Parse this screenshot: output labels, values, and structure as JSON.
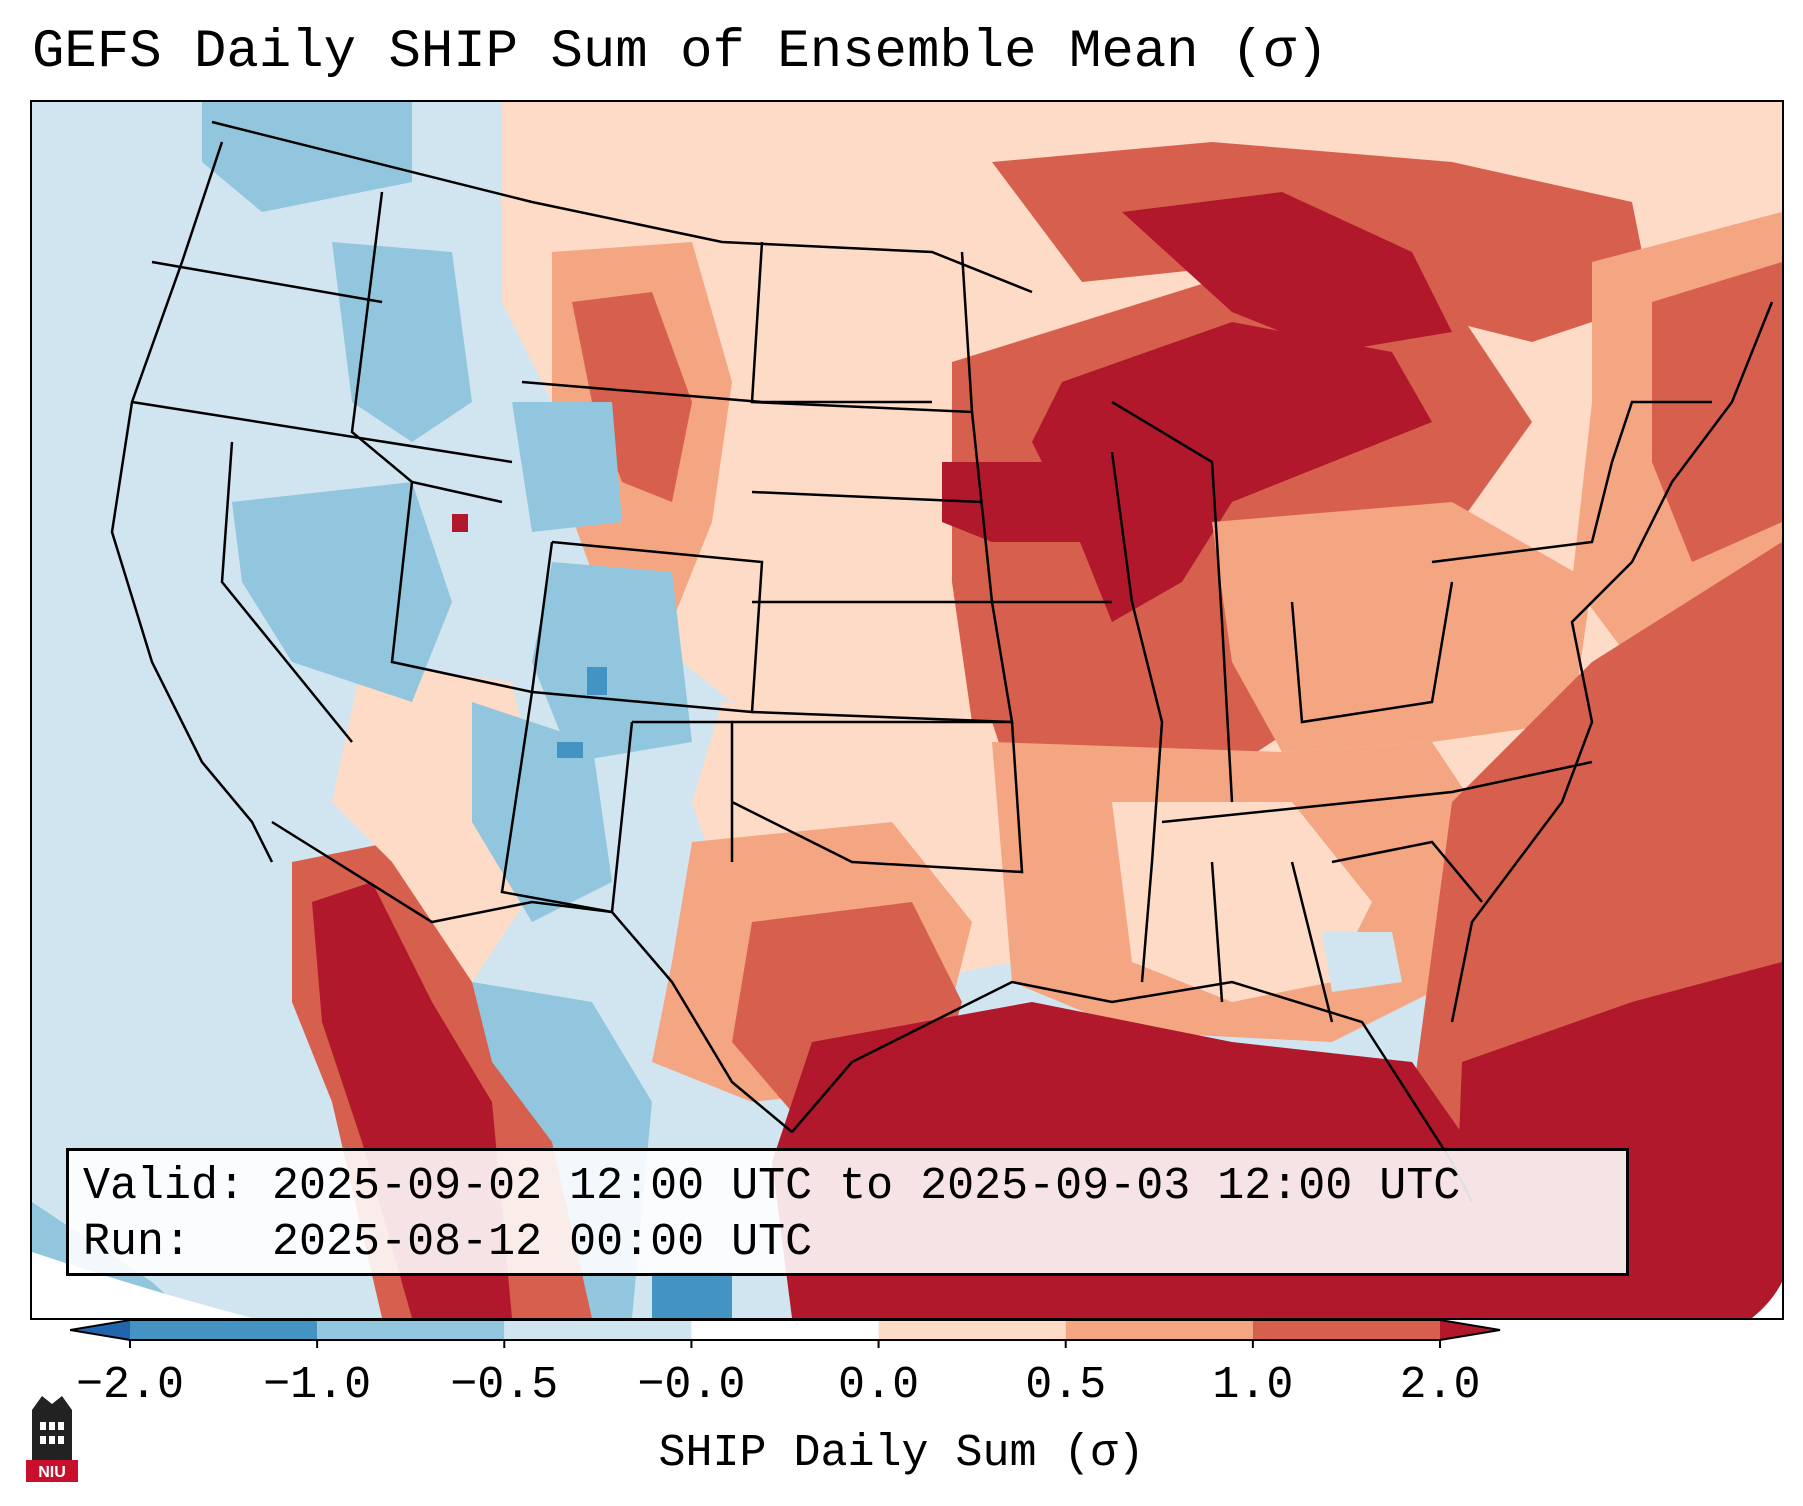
{
  "title": "GEFS Daily SHIP Sum of Ensemble Mean (σ)",
  "info": {
    "valid_label": "Valid:",
    "valid_value": "2025-09-02 12:00 UTC to 2025-09-03 12:00 UTC",
    "run_label": "Run:",
    "run_value": "2025-08-12 00:00 UTC"
  },
  "colorbar": {
    "label": "SHIP Daily Sum (σ)",
    "ticks": [
      "−2.0",
      "−1.0",
      "−0.5",
      "−0.0",
      "0.0",
      "0.5",
      "1.0",
      "2.0"
    ],
    "bins": [
      "#2166ac",
      "#4393c3",
      "#92c5de",
      "#d1e5f0",
      "#ffffff",
      "#fddbc7",
      "#f4a582",
      "#d6604d",
      "#b2182b"
    ],
    "under_color": "#2166ac",
    "over_color": "#b2182b"
  },
  "logo": {
    "text": "NIU"
  },
  "palette": {
    "very_low": "#4393c3",
    "low": "#92c5de",
    "slightly_low": "#d1e5f0",
    "slightly_high": "#fddbc7",
    "high": "#f4a582",
    "higher": "#d6604d",
    "highest": "#b2182b"
  }
}
